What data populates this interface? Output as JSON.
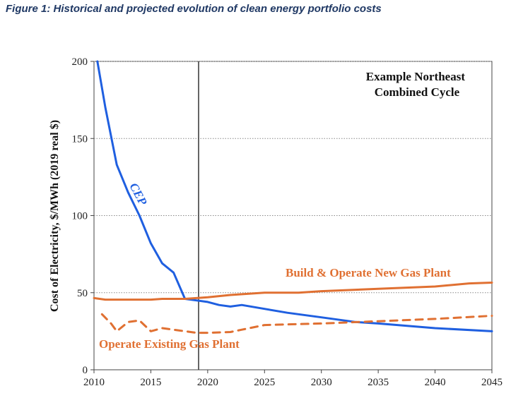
{
  "figure": {
    "title": "Figure 1: Historical and projected evolution of clean energy portfolio costs"
  },
  "colors": {
    "cep": "#1f5fe0",
    "gas": "#e07032",
    "axis": "#444444",
    "grid": "#888888"
  },
  "chart_data": {
    "type": "line",
    "title": "Example Northeast Combined Cycle",
    "title_lines": [
      "Example Northeast",
      "Combined Cycle"
    ],
    "xlabel": "",
    "ylabel": "Cost of Electricity, $/MWh (2019 real $)",
    "xlim": [
      2010,
      2045
    ],
    "ylim": [
      0,
      200
    ],
    "xticks": [
      2010,
      2015,
      2020,
      2025,
      2030,
      2035,
      2040,
      2045
    ],
    "yticks": [
      0,
      50,
      100,
      150,
      200
    ],
    "grid": "horizontal dotted",
    "vertical_marker_x": 2019.2,
    "series": [
      {
        "name": "CEP",
        "style": "solid",
        "color_key": "cep",
        "label": "CEP",
        "x": [
          2010.3,
          2011,
          2012,
          2013,
          2014,
          2015,
          2016,
          2017,
          2018,
          2019,
          2020,
          2021,
          2022,
          2023,
          2025,
          2027,
          2030,
          2033,
          2035,
          2040,
          2045
        ],
        "y": [
          200,
          170,
          133,
          115,
          100,
          82,
          69,
          63,
          46,
          45,
          44,
          42,
          41,
          42,
          39.5,
          37,
          34,
          31,
          30,
          27,
          25
        ]
      },
      {
        "name": "Build & Operate New Gas Plant",
        "style": "solid",
        "color_key": "gas",
        "label": "Build & Operate New Gas Plant",
        "x": [
          2010,
          2011,
          2015,
          2016,
          2018,
          2020,
          2022,
          2025,
          2028,
          2030,
          2035,
          2040,
          2043,
          2045
        ],
        "y": [
          46.5,
          45.5,
          45.5,
          46,
          46,
          47,
          48.5,
          50,
          50,
          51,
          52.5,
          54,
          56,
          56.5
        ]
      },
      {
        "name": "Operate Existing Gas Plant",
        "style": "dashed",
        "color_key": "gas",
        "label": "Operate Existing Gas Plant",
        "x": [
          2010.7,
          2011.5,
          2012,
          2013,
          2014,
          2015,
          2016,
          2017,
          2018,
          2019,
          2020,
          2022,
          2023,
          2025,
          2030,
          2035,
          2040,
          2045
        ],
        "y": [
          36,
          30,
          25,
          31,
          32,
          25,
          27,
          26,
          25,
          24,
          24,
          24.5,
          26,
          29,
          30,
          31.5,
          33,
          35
        ]
      }
    ]
  }
}
